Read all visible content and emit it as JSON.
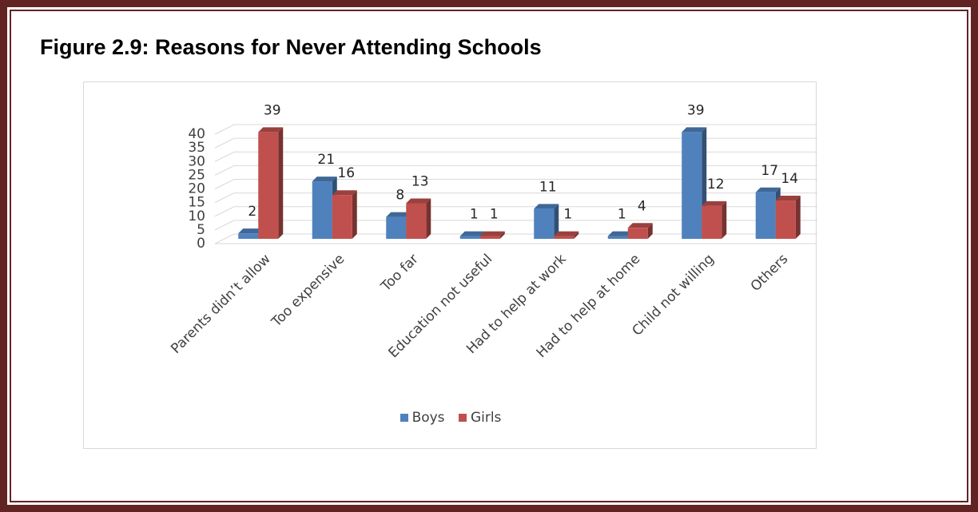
{
  "figure_title": "Figure 2.9: Reasons for Never Attending Schools",
  "colors": {
    "frame": "#622423",
    "boys": "#4f81bd",
    "girls": "#c0504d",
    "grid": "#d9d9d9",
    "axis_text": "#404040"
  },
  "chart_data": {
    "type": "bar",
    "title": "",
    "categories": [
      "Parents didn’t allow",
      "Too expensive",
      "Too far",
      "Education not useful",
      "Had to help at work",
      "Had to help at home",
      "Child not willing",
      "Others"
    ],
    "series": [
      {
        "name": "Boys",
        "values": [
          2,
          21,
          8,
          1,
          11,
          1,
          39,
          17
        ]
      },
      {
        "name": "Girls",
        "values": [
          39,
          16,
          13,
          1,
          1,
          4,
          12,
          14
        ]
      }
    ],
    "y_ticks": [
      0,
      5,
      10,
      15,
      20,
      25,
      30,
      35,
      40
    ],
    "ylim": [
      0,
      40
    ],
    "xlabel": "",
    "ylabel": "",
    "grid": true,
    "three_d": true,
    "legend_position": "bottom"
  },
  "legend": [
    {
      "label": "Boys",
      "color": "#4f81bd"
    },
    {
      "label": "Girls",
      "color": "#c0504d"
    }
  ]
}
